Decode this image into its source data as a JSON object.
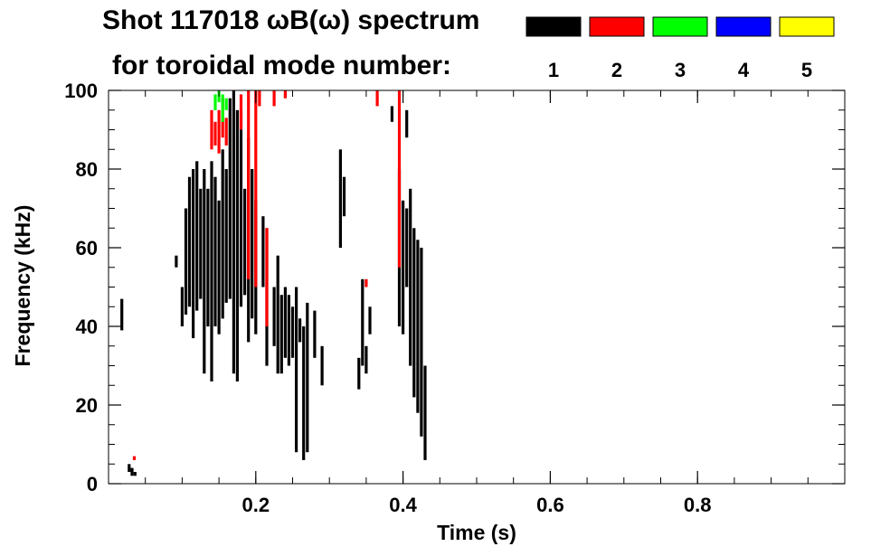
{
  "chart_data": {
    "type": "scatter",
    "title": "Shot 117018 ωB(ω) spectrum",
    "subtitle": "for toroidal mode number:",
    "xlabel": "Time (s)",
    "ylabel": "Frequency (kHz)",
    "xlim": [
      0.0,
      1.0
    ],
    "ylim": [
      0,
      100
    ],
    "xticks": [
      0.2,
      0.4,
      0.6,
      0.8
    ],
    "xtick_labels": [
      "0.2",
      "0.4",
      "0.6",
      "0.8"
    ],
    "yticks": [
      0,
      20,
      40,
      60,
      80,
      100
    ],
    "ytick_labels": [
      "0",
      "20",
      "40",
      "60",
      "80",
      "100"
    ],
    "x_minor_step": 0.05,
    "y_minor_step": 5,
    "grid": false,
    "legend_position": "top-right",
    "legend": [
      {
        "label": "1",
        "color": "#000000"
      },
      {
        "label": "2",
        "color": "#ff0000"
      },
      {
        "label": "3",
        "color": "#00ff00"
      },
      {
        "label": "4",
        "color": "#0000ff"
      },
      {
        "label": "5",
        "color": "#ffff00"
      }
    ],
    "series": [
      {
        "mode": 1,
        "color": "#000000",
        "segments": [
          [
            0.018,
            39,
            47
          ],
          [
            0.028,
            3,
            5
          ],
          [
            0.032,
            2,
            4
          ],
          [
            0.036,
            2,
            3
          ],
          [
            0.092,
            55,
            58
          ],
          [
            0.1,
            40,
            50
          ],
          [
            0.105,
            43,
            70
          ],
          [
            0.11,
            45,
            78
          ],
          [
            0.115,
            37,
            80
          ],
          [
            0.12,
            44,
            82
          ],
          [
            0.125,
            47,
            75
          ],
          [
            0.13,
            28,
            80
          ],
          [
            0.135,
            40,
            75
          ],
          [
            0.14,
            26,
            82
          ],
          [
            0.145,
            40,
            78
          ],
          [
            0.15,
            38,
            72
          ],
          [
            0.155,
            42,
            85
          ],
          [
            0.16,
            46,
            80
          ],
          [
            0.165,
            47,
            98
          ],
          [
            0.17,
            28,
            100
          ],
          [
            0.175,
            26,
            95
          ],
          [
            0.18,
            45,
            95
          ],
          [
            0.185,
            48,
            75
          ],
          [
            0.19,
            36,
            88
          ],
          [
            0.195,
            42,
            80
          ],
          [
            0.2,
            38,
            72
          ],
          [
            0.21,
            50,
            68
          ],
          [
            0.215,
            30,
            65
          ],
          [
            0.225,
            35,
            50
          ],
          [
            0.23,
            28,
            58
          ],
          [
            0.235,
            28,
            48
          ],
          [
            0.24,
            32,
            50
          ],
          [
            0.245,
            30,
            48
          ],
          [
            0.25,
            32,
            45
          ],
          [
            0.255,
            8,
            50
          ],
          [
            0.26,
            36,
            42
          ],
          [
            0.265,
            6,
            40
          ],
          [
            0.27,
            8,
            46
          ],
          [
            0.28,
            32,
            44
          ],
          [
            0.29,
            25,
            35
          ],
          [
            0.315,
            60,
            85
          ],
          [
            0.32,
            68,
            78
          ],
          [
            0.34,
            24,
            32
          ],
          [
            0.345,
            30,
            52
          ],
          [
            0.35,
            28,
            35
          ],
          [
            0.355,
            38,
            45
          ],
          [
            0.395,
            40,
            80
          ],
          [
            0.4,
            38,
            72
          ],
          [
            0.405,
            50,
            70
          ],
          [
            0.41,
            30,
            75
          ],
          [
            0.415,
            22,
            65
          ],
          [
            0.42,
            18,
            62
          ],
          [
            0.425,
            12,
            60
          ],
          [
            0.43,
            6,
            30
          ],
          [
            0.405,
            88,
            95
          ],
          [
            0.385,
            92,
            96
          ]
        ]
      },
      {
        "mode": 2,
        "color": "#ff0000",
        "segments": [
          [
            0.035,
            6,
            7
          ],
          [
            0.14,
            85,
            95
          ],
          [
            0.145,
            86,
            92
          ],
          [
            0.15,
            84,
            95
          ],
          [
            0.155,
            88,
            98
          ],
          [
            0.16,
            86,
            93
          ],
          [
            0.18,
            90,
            99
          ],
          [
            0.19,
            52,
            100
          ],
          [
            0.2,
            50,
            100
          ],
          [
            0.205,
            96,
            100
          ],
          [
            0.215,
            40,
            65
          ],
          [
            0.225,
            96,
            100
          ],
          [
            0.24,
            98,
            100
          ],
          [
            0.35,
            50,
            52
          ],
          [
            0.365,
            96,
            100
          ],
          [
            0.395,
            55,
            100
          ]
        ]
      },
      {
        "mode": 3,
        "color": "#00ff00",
        "segments": [
          [
            0.145,
            95,
            99
          ],
          [
            0.15,
            97,
            100
          ],
          [
            0.155,
            92,
            99
          ],
          [
            0.16,
            95,
            98
          ]
        ]
      }
    ]
  }
}
